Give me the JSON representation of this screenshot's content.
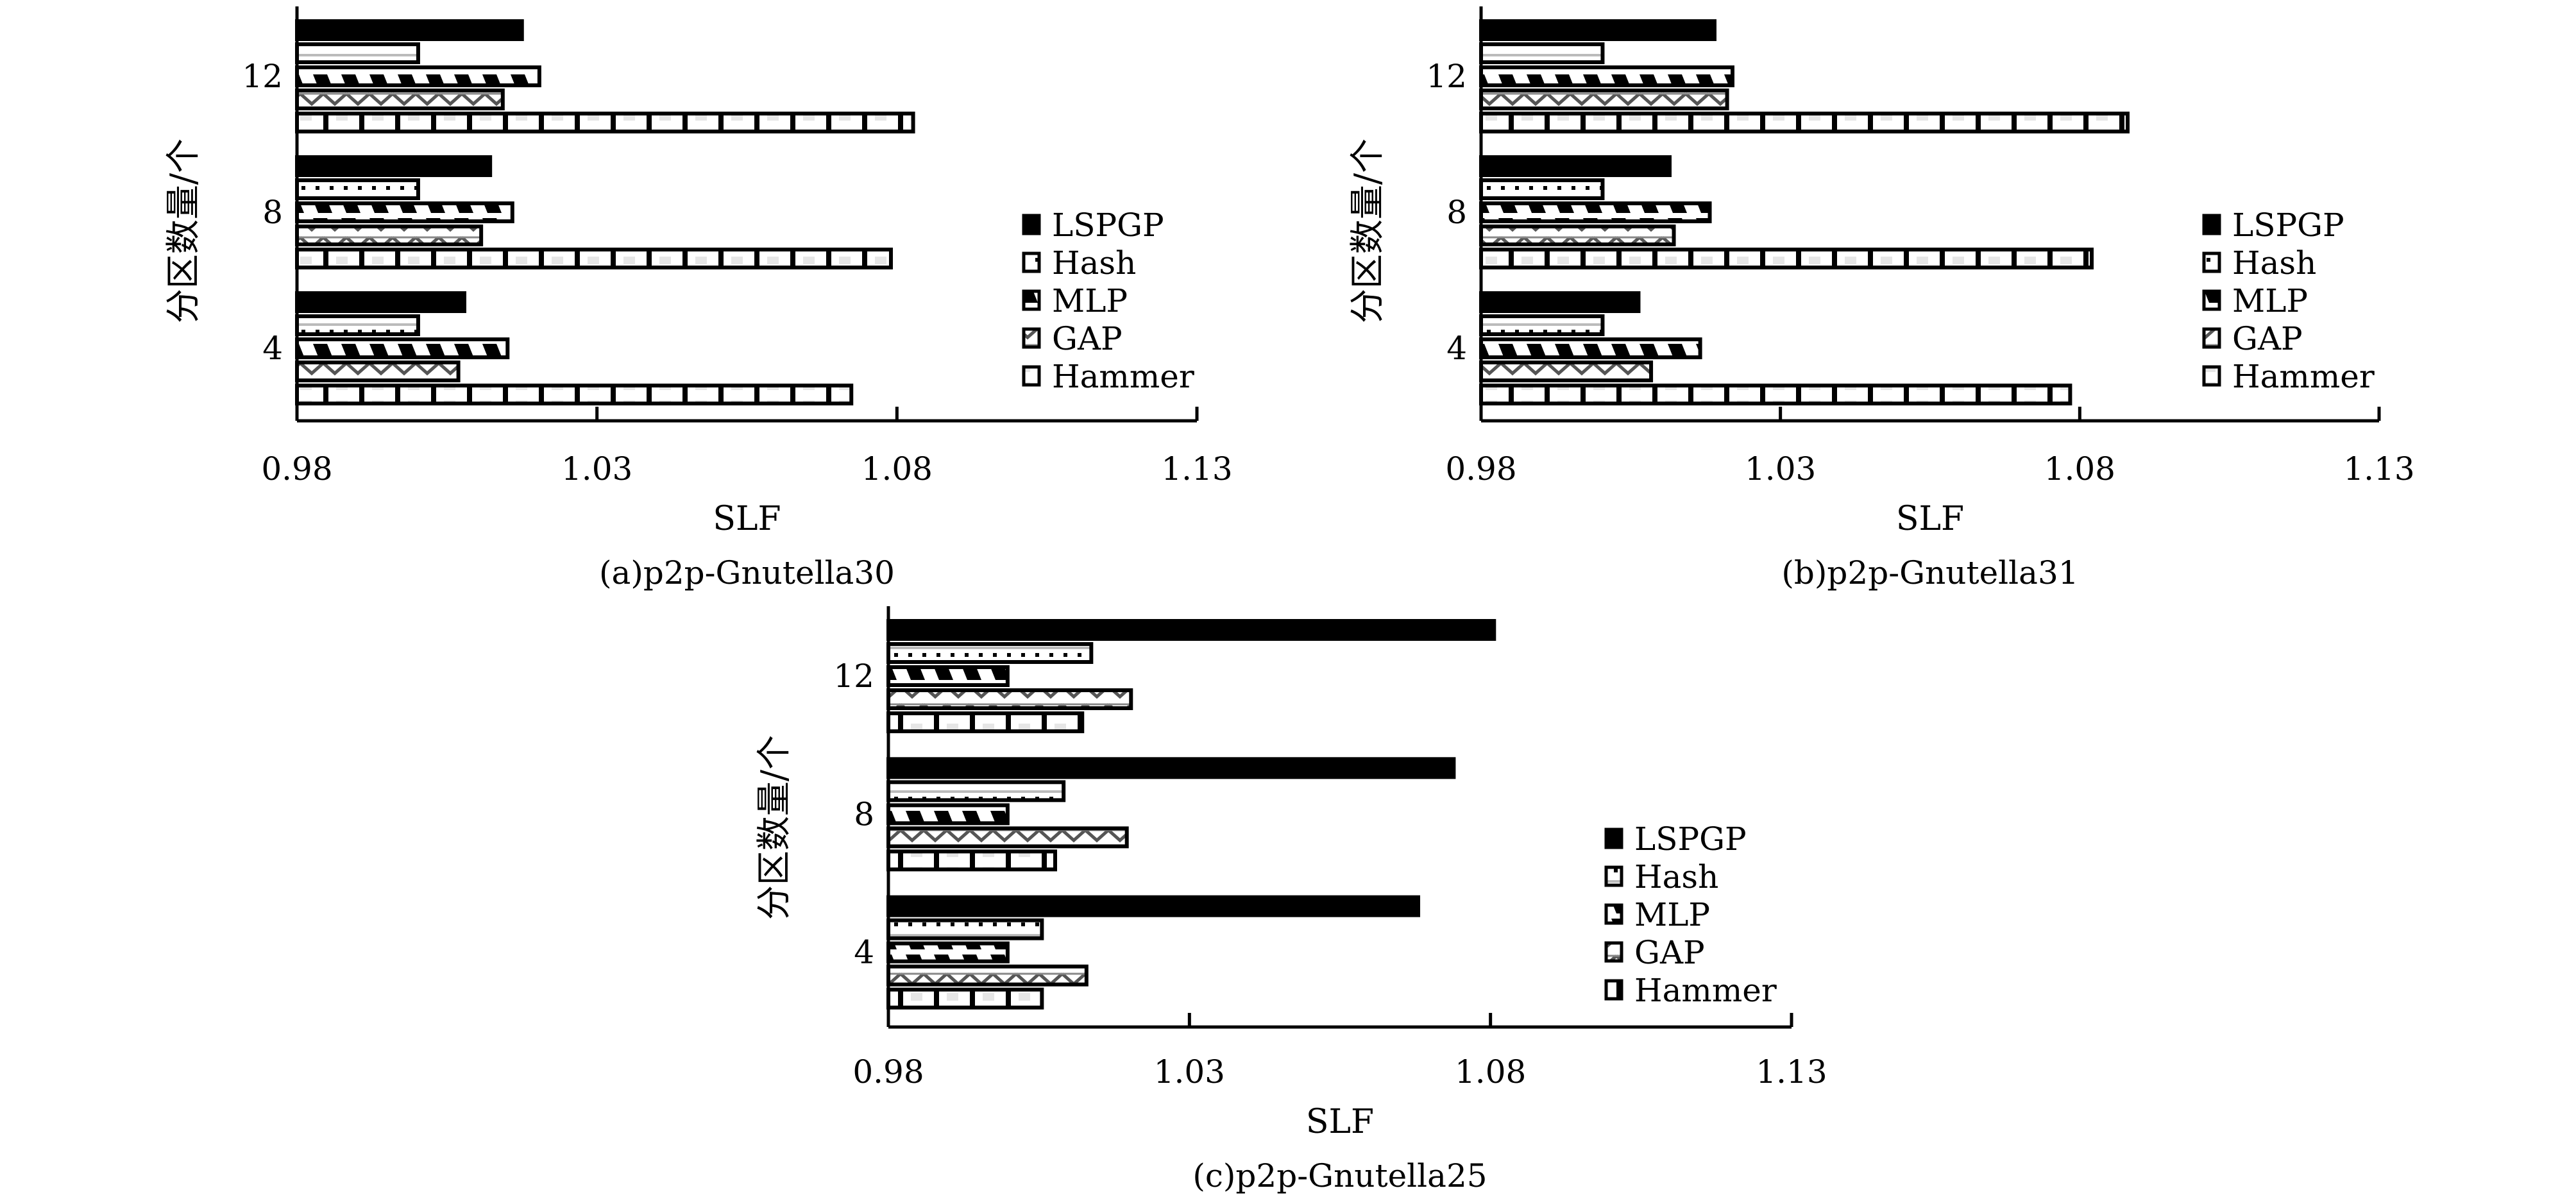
{
  "chart_data": [
    {
      "type": "bar",
      "orientation": "horizontal",
      "caption": "(a)p2p-Gnutella30",
      "xlabel": "SLF",
      "ylabel": "分区数量/个",
      "categories": [
        "12",
        "8",
        "4"
      ],
      "xlim": [
        0.98,
        1.13
      ],
      "xticks": [
        "0.98",
        "1.03",
        "1.08",
        "1.13"
      ],
      "legend_position": "right",
      "series": [
        {
          "name": "LSPGP",
          "values": [
            1.0175,
            1.0122,
            1.0079
          ]
        },
        {
          "name": "Hash",
          "values": [
            1.0002,
            1.0002,
            1.0002
          ]
        },
        {
          "name": "MLP",
          "values": [
            1.0204,
            1.0159,
            1.0151
          ]
        },
        {
          "name": "GAP",
          "values": [
            1.0143,
            1.0107,
            1.0069
          ]
        },
        {
          "name": "Hammer",
          "values": [
            1.0827,
            1.079,
            1.0724
          ]
        }
      ]
    },
    {
      "type": "bar",
      "orientation": "horizontal",
      "caption": "(b)p2p-Gnutella31",
      "xlabel": "SLF",
      "ylabel": "分区数量/个",
      "categories": [
        "12",
        "8",
        "4"
      ],
      "xlim": [
        0.98,
        1.13
      ],
      "xticks": [
        "0.98",
        "1.03",
        "1.08",
        "1.13"
      ],
      "legend_position": "right",
      "series": [
        {
          "name": "LSPGP",
          "values": [
            1.019,
            1.0115,
            1.0063
          ]
        },
        {
          "name": "Hash",
          "values": [
            1.0003,
            1.0003,
            1.0003
          ]
        },
        {
          "name": "MLP",
          "values": [
            1.022,
            1.0182,
            1.0166
          ]
        },
        {
          "name": "GAP",
          "values": [
            1.0211,
            1.0122,
            1.0084
          ]
        },
        {
          "name": "Hammer",
          "values": [
            1.088,
            1.082,
            1.0784
          ]
        }
      ]
    },
    {
      "type": "bar",
      "orientation": "horizontal",
      "caption": "(c)p2p-Gnutella25",
      "xlabel": "SLF",
      "ylabel": "分区数量/个",
      "categories": [
        "12",
        "8",
        "4"
      ],
      "xlim": [
        0.98,
        1.13
      ],
      "xticks": [
        "0.98",
        "1.03",
        "1.08",
        "1.13"
      ],
      "legend_position": "right",
      "series": [
        {
          "name": "LSPGP",
          "values": [
            1.0806,
            1.0739,
            1.068
          ]
        },
        {
          "name": "Hash",
          "values": [
            1.0137,
            1.0091,
            1.0055
          ]
        },
        {
          "name": "MLP",
          "values": [
            0.9998,
            0.9998,
            0.9998
          ]
        },
        {
          "name": "GAP",
          "values": [
            1.0203,
            1.0196,
            1.0129
          ]
        },
        {
          "name": "Hammer",
          "values": [
            1.0122,
            1.0077,
            1.0055
          ]
        }
      ]
    }
  ]
}
